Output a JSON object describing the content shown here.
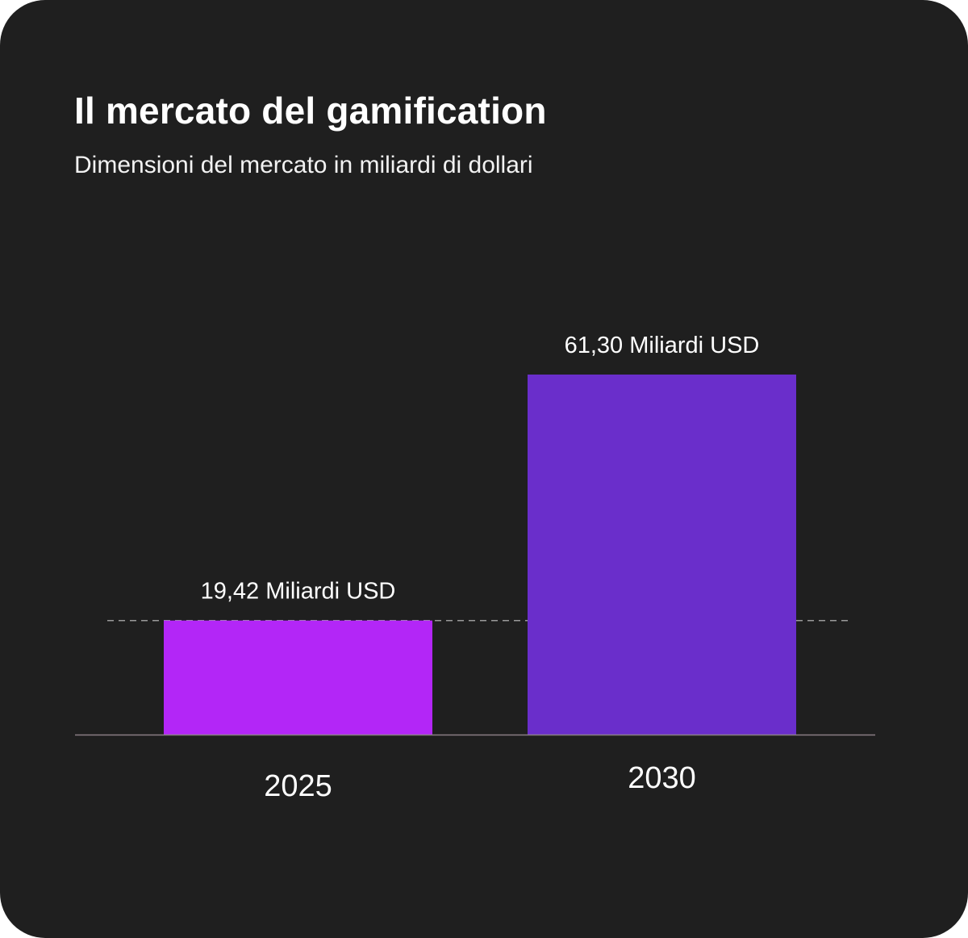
{
  "colors": {
    "background": "#1f1f1f",
    "bar_2025": "#b326f7",
    "bar_2030": "#6a2ecb",
    "text": "#ffffff",
    "baseline": "#8a7f85",
    "reference_line": "#9a9a9a"
  },
  "chart_data": {
    "type": "bar",
    "title": "Il mercato del gamification",
    "subtitle": "Dimensioni del mercato in miliardi di dollari",
    "xlabel": "",
    "ylabel": "",
    "unit": "Miliardi USD",
    "categories": [
      "2025",
      "2030"
    ],
    "values": [
      19.42,
      61.3
    ],
    "data_labels": [
      "19,42 Miliardi USD",
      "61,30 Miliardi USD"
    ],
    "ylim": [
      0,
      61.3
    ],
    "grid": false,
    "legend": "none",
    "reference_line": {
      "value": 19.42,
      "style": "dashed"
    }
  }
}
